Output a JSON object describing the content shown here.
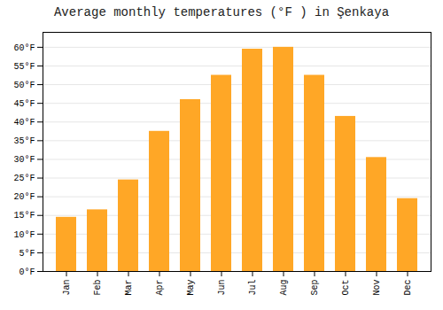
{
  "chart_data": {
    "type": "bar",
    "title": "Average monthly temperatures (°F ) in Şenkaya",
    "categories": [
      "Jan",
      "Feb",
      "Mar",
      "Apr",
      "May",
      "Jun",
      "Jul",
      "Aug",
      "Sep",
      "Oct",
      "Nov",
      "Dec"
    ],
    "values": [
      14.5,
      16.5,
      24.5,
      37.5,
      46.0,
      52.5,
      59.5,
      60.0,
      52.5,
      41.5,
      30.5,
      19.5
    ],
    "color": "#FFA726",
    "ylim": [
      0,
      64
    ],
    "yticks": [
      {
        "value": 0,
        "label": "0°F"
      },
      {
        "value": 5,
        "label": "5°F"
      },
      {
        "value": 10,
        "label": "10°F"
      },
      {
        "value": 15,
        "label": "15°F"
      },
      {
        "value": 20,
        "label": "20°F"
      },
      {
        "value": 25,
        "label": "25°F"
      },
      {
        "value": 30,
        "label": "30°F"
      },
      {
        "value": 35,
        "label": "35°F"
      },
      {
        "value": 40,
        "label": "40°F"
      },
      {
        "value": 45,
        "label": "45°F"
      },
      {
        "value": 50,
        "label": "50°F"
      },
      {
        "value": 55,
        "label": "55°F"
      },
      {
        "value": 60,
        "label": "60°F"
      }
    ],
    "grid": true
  }
}
